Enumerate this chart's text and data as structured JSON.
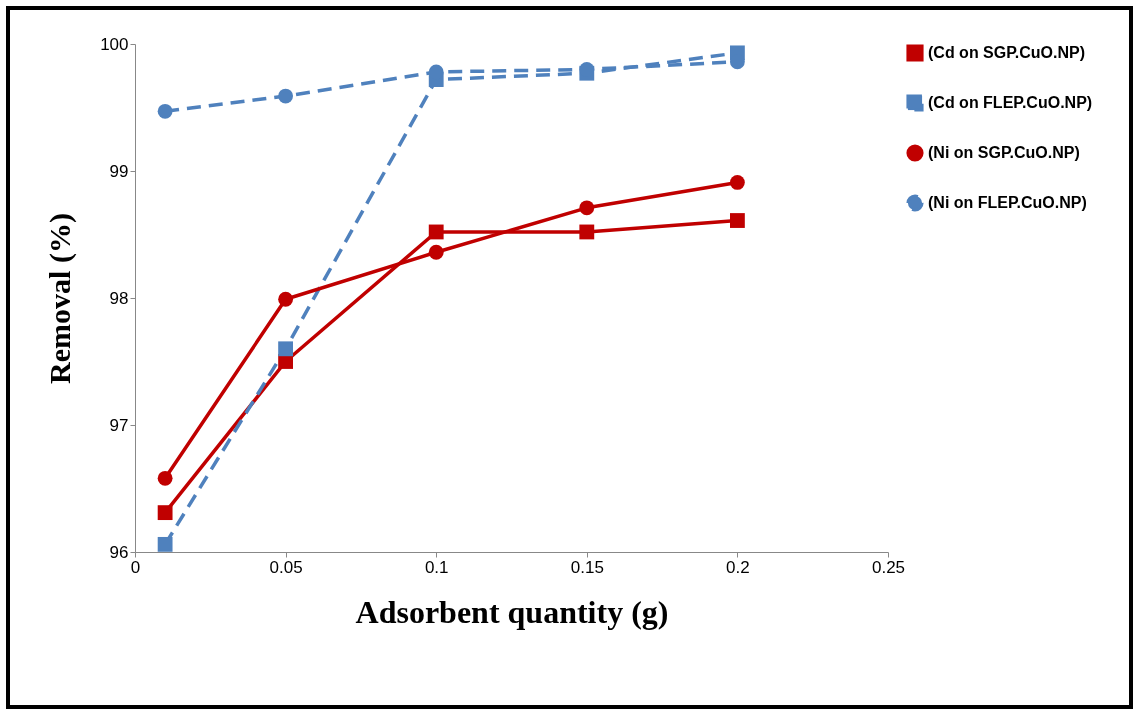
{
  "chart_data": {
    "type": "line",
    "xlabel": "Adsorbent quantity (g)",
    "ylabel": "Removal (%)",
    "x": [
      0.01,
      0.05,
      0.1,
      0.15,
      0.2
    ],
    "series": [
      {
        "name": "(Cd on SGP.CuO.NP)",
        "color": "#c00000",
        "marker": "square",
        "line_style": "solid",
        "values": [
          96.31,
          97.5,
          98.52,
          98.52,
          98.61
        ]
      },
      {
        "name": "(Cd on FLEP.CuO.NP)",
        "color": "#4f81bd",
        "marker": "square",
        "line_style": "dashed",
        "values": [
          96.06,
          97.6,
          99.72,
          99.77,
          99.93
        ]
      },
      {
        "name": "(Ni on SGP.CuO.NP)",
        "color": "#c00000",
        "marker": "circle",
        "line_style": "solid",
        "values": [
          96.58,
          97.99,
          98.36,
          98.71,
          98.91
        ]
      },
      {
        "name": "(Ni on FLEP.CuO.NP)",
        "color": "#4f81bd",
        "marker": "circle",
        "line_style": "dashed",
        "values": [
          99.47,
          99.59,
          99.78,
          99.8,
          99.86
        ]
      }
    ],
    "xlim": [
      0,
      0.25
    ],
    "xticks": [
      0,
      0.05,
      0.1,
      0.15,
      0.2,
      0.25
    ],
    "ylim": [
      96,
      100
    ],
    "yticks": [
      96,
      97,
      98,
      99,
      100
    ],
    "grid": false,
    "legend": "top right"
  }
}
